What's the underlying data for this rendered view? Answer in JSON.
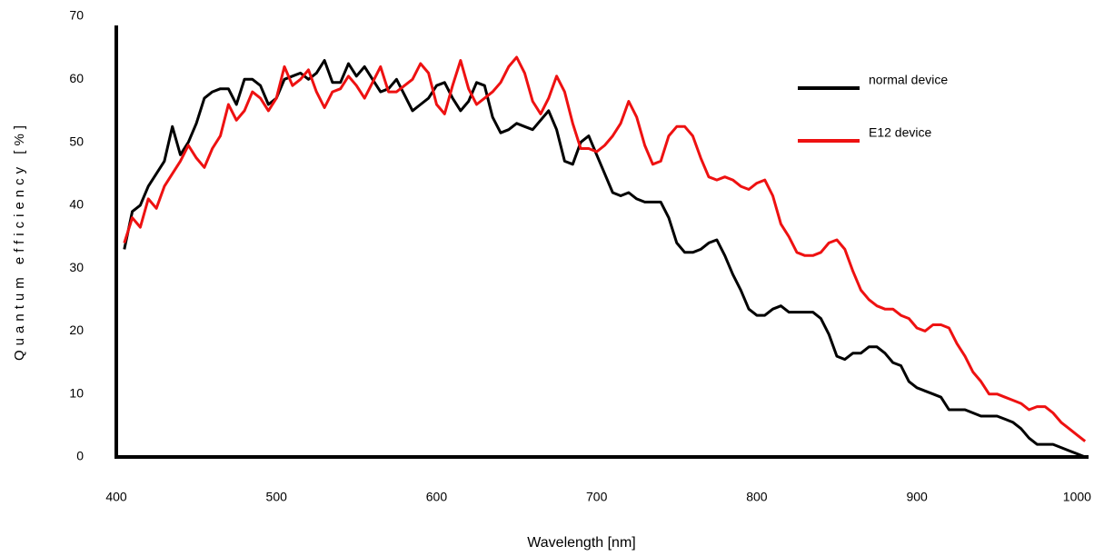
{
  "chart_data": {
    "type": "line",
    "xlabel": "Wavelength [nm]",
    "ylabel": "Quantum efficiency [%]",
    "xlim": [
      400,
      1010
    ],
    "ylim": [
      0,
      70
    ],
    "xticks": [
      400,
      500,
      600,
      700,
      800,
      900,
      1000
    ],
    "yticks": [
      0,
      10,
      20,
      30,
      40,
      50,
      60,
      70
    ],
    "grid": false,
    "legend": "upper right",
    "x": [
      405,
      410,
      415,
      420,
      425,
      430,
      435,
      440,
      445,
      450,
      455,
      460,
      465,
      470,
      475,
      480,
      485,
      490,
      495,
      500,
      505,
      510,
      515,
      520,
      525,
      530,
      535,
      540,
      545,
      550,
      555,
      560,
      565,
      570,
      575,
      580,
      585,
      590,
      595,
      600,
      605,
      610,
      615,
      620,
      625,
      630,
      635,
      640,
      645,
      650,
      655,
      660,
      665,
      670,
      675,
      680,
      685,
      690,
      695,
      700,
      705,
      710,
      715,
      720,
      725,
      730,
      735,
      740,
      745,
      750,
      755,
      760,
      765,
      770,
      775,
      780,
      785,
      790,
      795,
      800,
      805,
      810,
      815,
      820,
      825,
      830,
      835,
      840,
      845,
      850,
      855,
      860,
      865,
      870,
      875,
      880,
      885,
      890,
      895,
      900,
      905,
      910,
      915,
      920,
      925,
      930,
      935,
      940,
      945,
      950,
      955,
      960,
      965,
      970,
      975,
      980,
      985,
      990,
      995,
      1000,
      1005
    ],
    "series": [
      {
        "name": "normal device",
        "color": "#000000",
        "values": [
          33,
          39,
          40,
          43,
          45,
          47,
          52.5,
          48,
          50,
          53,
          57,
          58,
          58.5,
          58.5,
          56,
          60,
          60,
          59,
          56,
          57,
          60,
          60.5,
          61,
          60,
          61,
          63,
          59.5,
          59.5,
          62.5,
          60.5,
          62,
          60,
          58,
          58.5,
          60,
          57.5,
          55,
          56,
          57,
          59,
          59.5,
          57,
          55,
          56.5,
          59.5,
          59,
          54,
          51.5,
          52,
          53,
          52.5,
          52,
          53.5,
          55,
          52,
          47,
          46.5,
          50,
          51,
          48,
          45,
          42,
          41.5,
          42,
          41,
          40.5,
          40.5,
          40.5,
          38,
          34,
          32.5,
          32.5,
          33,
          34,
          34.5,
          32,
          29,
          26.5,
          23.5,
          22.5,
          22.5,
          23.5,
          24,
          23,
          23,
          23,
          23,
          22,
          19.5,
          16,
          15.5,
          16.5,
          16.5,
          17.5,
          17.5,
          16.5,
          15,
          14.5,
          12,
          11,
          10.5,
          10,
          9.5,
          7.5,
          7.5,
          7.5,
          7,
          6.5,
          6.5,
          6.5,
          6,
          5.5,
          4.5,
          3,
          2,
          2,
          2,
          1.5,
          1,
          0.5,
          0
        ]
      },
      {
        "name": "E12 device",
        "color": "#ee1111",
        "values": [
          34,
          38,
          36.5,
          41,
          39.5,
          43,
          45,
          47,
          49.5,
          47.5,
          46,
          49,
          51,
          56,
          53.5,
          55,
          58,
          57,
          55,
          57,
          62,
          59,
          60,
          61.5,
          58,
          55.5,
          58,
          58.5,
          60.5,
          59,
          57,
          59.5,
          62,
          58,
          58,
          59,
          60,
          62.5,
          61,
          56,
          54.5,
          59,
          63,
          58.5,
          56,
          57,
          58,
          59.5,
          62,
          63.5,
          61,
          56.5,
          54.5,
          57,
          60.5,
          58,
          53,
          49,
          49,
          48.5,
          49.5,
          51,
          53,
          56.5,
          54,
          49.5,
          46.5,
          47,
          51,
          52.5,
          52.5,
          51,
          47.5,
          44.5,
          44,
          44.5,
          44,
          43,
          42.5,
          43.5,
          44,
          41.5,
          37,
          35,
          32.5,
          32,
          32,
          32.5,
          34,
          34.5,
          33,
          29.5,
          26.5,
          25,
          24,
          23.5,
          23.5,
          22.5,
          22,
          20.5,
          20,
          21,
          21,
          20.5,
          18,
          16,
          13.5,
          12,
          10,
          10,
          9.5,
          9,
          8.5,
          7.5,
          8,
          8,
          7,
          5.5,
          4.5,
          3.5,
          2.5
        ]
      }
    ]
  }
}
